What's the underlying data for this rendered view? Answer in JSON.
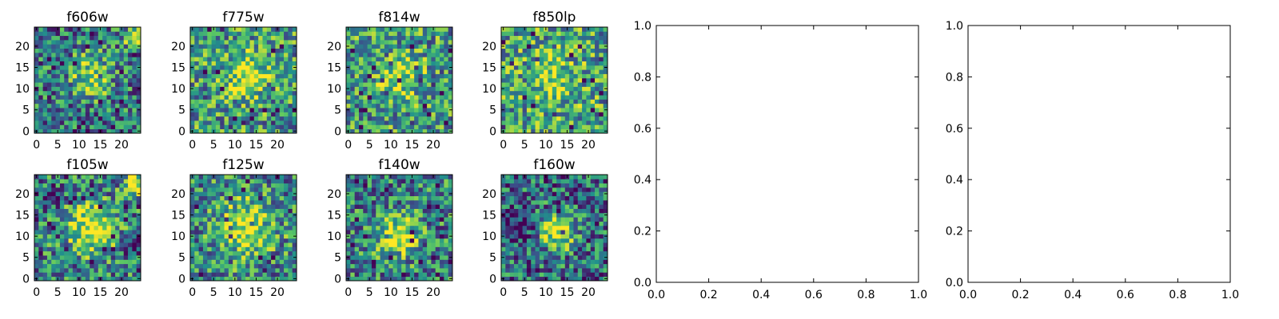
{
  "figure": {
    "background": "#ffffff",
    "colormap": "viridis",
    "colormap_stops": [
      "#440154",
      "#3b528b",
      "#21918c",
      "#5ec962",
      "#fde725"
    ]
  },
  "chart_data": [
    {
      "type": "heatmap",
      "title": "f606w",
      "grid_size": [
        25,
        25
      ],
      "xticks": [
        "0",
        "5",
        "10",
        "15",
        "20"
      ],
      "yticks": [
        "0",
        "5",
        "10",
        "15",
        "20"
      ],
      "seed": 606,
      "peak": {
        "x": 13,
        "y": 13,
        "amp": 0.45,
        "spread": 3.5
      },
      "extra_peaks": [
        {
          "x": 23,
          "y": 22,
          "amp": 0.8,
          "spread": 1.5
        }
      ],
      "base": 0.42
    },
    {
      "type": "heatmap",
      "title": "f775w",
      "grid_size": [
        25,
        25
      ],
      "xticks": [
        "0",
        "5",
        "10",
        "15",
        "20"
      ],
      "yticks": [
        "0",
        "5",
        "10",
        "15",
        "20"
      ],
      "seed": 775,
      "peak": {
        "x": 13,
        "y": 13,
        "amp": 0.4,
        "spread": 3.5
      },
      "extra_peaks": [],
      "base": 0.55
    },
    {
      "type": "heatmap",
      "title": "f814w",
      "grid_size": [
        25,
        25
      ],
      "xticks": [
        "0",
        "5",
        "10",
        "15",
        "20"
      ],
      "yticks": [
        "0",
        "5",
        "10",
        "15",
        "20"
      ],
      "seed": 814,
      "peak": {
        "x": 12,
        "y": 13,
        "amp": 0.35,
        "spread": 3.5
      },
      "extra_peaks": [],
      "base": 0.55
    },
    {
      "type": "heatmap",
      "title": "f850lp",
      "grid_size": [
        25,
        25
      ],
      "xticks": [
        "0",
        "5",
        "10",
        "15",
        "20"
      ],
      "yticks": [
        "0",
        "5",
        "10",
        "15",
        "20"
      ],
      "seed": 850,
      "peak": {
        "x": 12,
        "y": 12,
        "amp": 0.25,
        "spread": 4
      },
      "extra_peaks": [],
      "base": 0.58
    },
    {
      "type": "heatmap",
      "title": "f105w",
      "grid_size": [
        25,
        25
      ],
      "xticks": [
        "0",
        "5",
        "10",
        "15",
        "20"
      ],
      "yticks": [
        "0",
        "5",
        "10",
        "15",
        "20"
      ],
      "seed": 105,
      "peak": {
        "x": 13,
        "y": 12,
        "amp": 0.55,
        "spread": 4
      },
      "extra_peaks": [
        {
          "x": 23,
          "y": 22,
          "amp": 0.6,
          "spread": 1.8
        },
        {
          "x": 3,
          "y": 19,
          "amp": -0.45,
          "spread": 1.5
        },
        {
          "x": 23,
          "y": 8,
          "amp": -0.5,
          "spread": 1.6
        }
      ],
      "base": 0.45
    },
    {
      "type": "heatmap",
      "title": "f125w",
      "grid_size": [
        25,
        25
      ],
      "xticks": [
        "0",
        "5",
        "10",
        "15",
        "20"
      ],
      "yticks": [
        "0",
        "5",
        "10",
        "15",
        "20"
      ],
      "seed": 125,
      "peak": {
        "x": 13,
        "y": 12,
        "amp": 0.5,
        "spread": 4
      },
      "extra_peaks": [],
      "base": 0.5
    },
    {
      "type": "heatmap",
      "title": "f140w",
      "grid_size": [
        25,
        25
      ],
      "xticks": [
        "0",
        "5",
        "10",
        "15",
        "20"
      ],
      "yticks": [
        "0",
        "5",
        "10",
        "15",
        "20"
      ],
      "seed": 140,
      "peak": {
        "x": 12,
        "y": 10,
        "amp": 0.5,
        "spread": 3.5
      },
      "extra_peaks": [],
      "base": 0.45
    },
    {
      "type": "heatmap",
      "title": "f160w",
      "grid_size": [
        25,
        25
      ],
      "xticks": [
        "0",
        "5",
        "10",
        "15",
        "20"
      ],
      "yticks": [
        "0",
        "5",
        "10",
        "15",
        "20"
      ],
      "seed": 160,
      "peak": {
        "x": 13,
        "y": 11,
        "amp": 0.6,
        "spread": 3
      },
      "extra_peaks": [
        {
          "x": 2,
          "y": 12,
          "amp": -0.3,
          "spread": 3
        }
      ],
      "base": 0.38
    },
    {
      "type": "line",
      "title": "",
      "series": [],
      "xlim": [
        0.0,
        1.0
      ],
      "ylim": [
        0.0,
        1.0
      ],
      "xticks": [
        "0.0",
        "0.2",
        "0.4",
        "0.6",
        "0.8",
        "1.0"
      ],
      "yticks": [
        "0.0",
        "0.2",
        "0.4",
        "0.6",
        "0.8",
        "1.0"
      ]
    },
    {
      "type": "line",
      "title": "",
      "series": [],
      "xlim": [
        0.0,
        1.0
      ],
      "ylim": [
        0.0,
        1.0
      ],
      "xticks": [
        "0.0",
        "0.2",
        "0.4",
        "0.6",
        "0.8",
        "1.0"
      ],
      "yticks": [
        "0.0",
        "0.2",
        "0.4",
        "0.6",
        "0.8",
        "1.0"
      ]
    }
  ]
}
